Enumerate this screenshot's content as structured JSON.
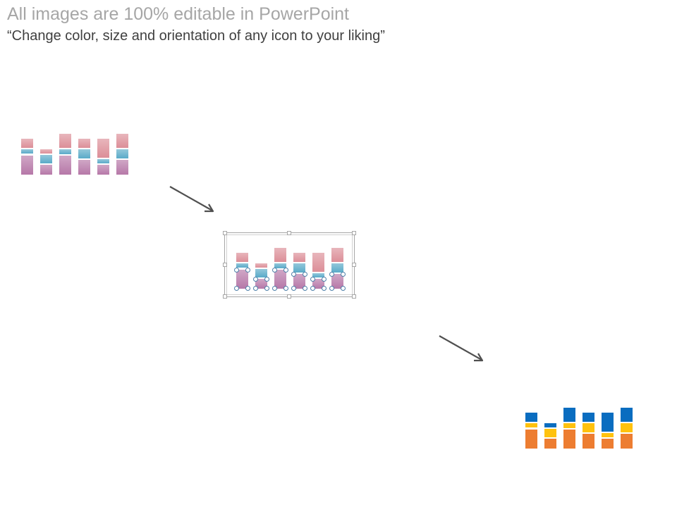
{
  "header": {
    "title": "All images are 100% editable in PowerPoint",
    "subtitle": "“Change color, size and orientation of any icon to your liking”"
  },
  "icon_variants": [
    {
      "name": "original",
      "colors": {
        "top": "#dc8e98",
        "middle": "#5aaac8",
        "bottom": "#b678a8"
      },
      "bars": [
        {
          "top": 0.24,
          "middle": 0.11,
          "bottom": 0.5
        },
        {
          "top": 0.11,
          "middle": 0.22,
          "bottom": 0.26
        },
        {
          "top": 0.37,
          "middle": 0.11,
          "bottom": 0.5
        },
        {
          "top": 0.24,
          "middle": 0.22,
          "bottom": 0.39
        },
        {
          "top": 0.48,
          "middle": 0.11,
          "bottom": 0.26
        },
        {
          "top": 0.37,
          "middle": 0.22,
          "bottom": 0.39
        }
      ]
    },
    {
      "name": "selected",
      "colors": {
        "top": "#dc8e98",
        "middle": "#5aaac8",
        "bottom": "#b678a8"
      },
      "bars": [
        {
          "top": 0.24,
          "middle": 0.11,
          "bottom": 0.5
        },
        {
          "top": 0.11,
          "middle": 0.22,
          "bottom": 0.26
        },
        {
          "top": 0.37,
          "middle": 0.11,
          "bottom": 0.5
        },
        {
          "top": 0.24,
          "middle": 0.22,
          "bottom": 0.39
        },
        {
          "top": 0.48,
          "middle": 0.11,
          "bottom": 0.26
        },
        {
          "top": 0.37,
          "middle": 0.22,
          "bottom": 0.39
        }
      ]
    },
    {
      "name": "recolored",
      "colors": {
        "top": "#0a6dc0",
        "middle": "#ffc20e",
        "bottom": "#ed7d31"
      },
      "bars": [
        {
          "top": 0.24,
          "middle": 0.11,
          "bottom": 0.5
        },
        {
          "top": 0.11,
          "middle": 0.22,
          "bottom": 0.26
        },
        {
          "top": 0.37,
          "middle": 0.11,
          "bottom": 0.5
        },
        {
          "top": 0.24,
          "middle": 0.22,
          "bottom": 0.39
        },
        {
          "top": 0.48,
          "middle": 0.11,
          "bottom": 0.26
        },
        {
          "top": 0.37,
          "middle": 0.22,
          "bottom": 0.39
        }
      ]
    }
  ],
  "arrows": [
    {
      "name": "arrow-to-edit",
      "icon": "arrow-down-right-icon",
      "color": "#505050"
    },
    {
      "name": "arrow-to-result",
      "icon": "arrow-down-right-icon",
      "color": "#505050"
    }
  ],
  "selection": {
    "icon": "selection-handles-icon",
    "border_color": "#a6a6a6",
    "node_color": "#4d7fa8"
  }
}
